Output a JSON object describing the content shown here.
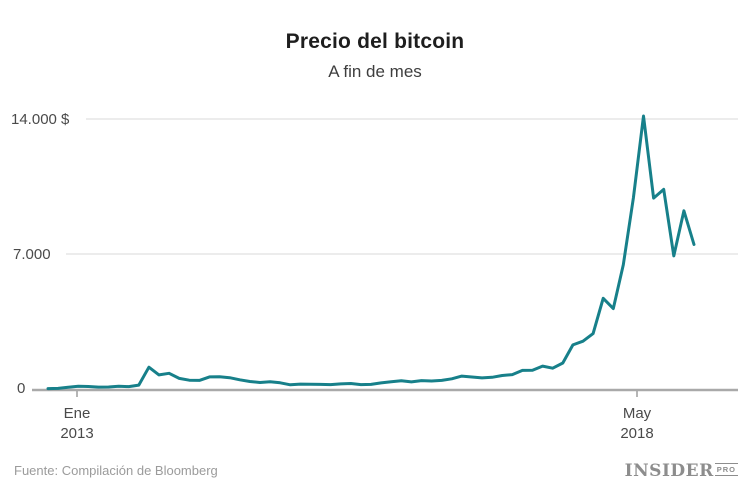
{
  "header": {
    "title": "Precio del bitcoin",
    "subtitle": "A fin de mes"
  },
  "footer": {
    "source": "Fuente: Compilación de Bloomberg",
    "logo_main": "INSIDER",
    "logo_sub": "PRO"
  },
  "chart_data": {
    "type": "line",
    "title": "Precio del bitcoin",
    "subtitle": "A fin de mes",
    "unit": "USD",
    "x_start": "2013-01",
    "x_end": "2018-05",
    "x_frequency": "monthly-end-of-month",
    "ylim": [
      0,
      14500
    ],
    "grid": "horizontal",
    "legend": "none",
    "line_color": "#17808a",
    "y_axis": {
      "labels": [
        "14.000 $",
        "7.000",
        "0"
      ],
      "tick_values": [
        14000,
        7000,
        0
      ]
    },
    "x_axis": {
      "ticks": [
        {
          "line1": "Ene",
          "line2": "2013"
        },
        {
          "line1": "May",
          "line2": "2018"
        }
      ]
    },
    "values": [
      20,
      33,
      93,
      139,
      129,
      97,
      106,
      141,
      127,
      204,
      1130,
      732,
      815,
      551,
      458,
      446,
      627,
      635,
      585,
      477,
      387,
      338,
      378,
      320,
      217,
      254,
      244,
      236,
      230,
      263,
      284,
      230,
      236,
      314,
      377,
      430,
      369,
      437,
      416,
      448,
      531,
      670,
      624,
      573,
      609,
      700,
      745,
      964,
      970,
      1190,
      1080,
      1350,
      2286,
      2480,
      2875,
      4703,
      4171,
      6440,
      9916,
      14156,
      9900,
      10350,
      6900,
      9240,
      7494
    ]
  }
}
